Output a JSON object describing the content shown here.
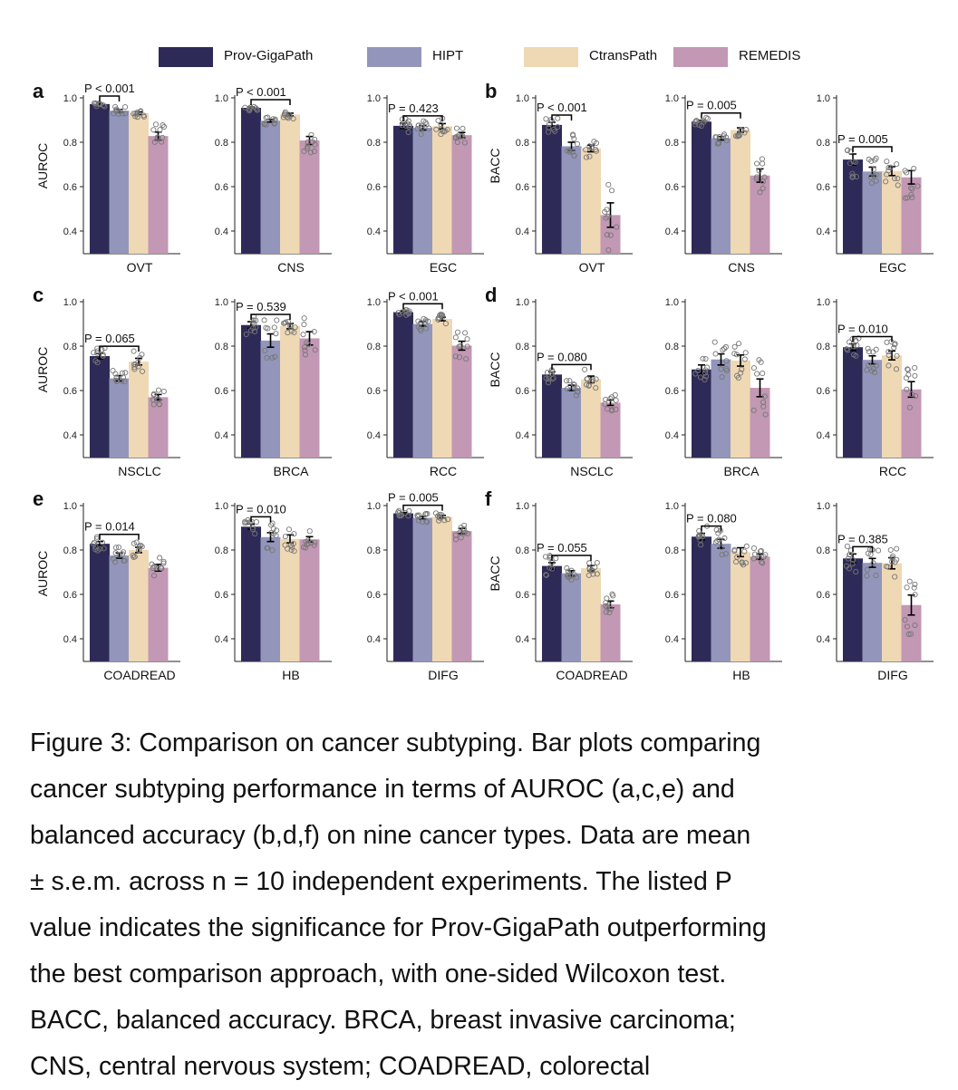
{
  "legend": [
    {
      "label": "Prov-GigaPath",
      "color": "#2e2a57"
    },
    {
      "label": "HIPT",
      "color": "#9396ba"
    },
    {
      "label": "CtransPath",
      "color": "#efd8b4"
    },
    {
      "label": "REMEDIS",
      "color": "#c298b4"
    }
  ],
  "chart_data": [
    {
      "panel_letter": "a",
      "type": "bar",
      "ylabel": "AUROC",
      "xlabel": "OVT",
      "p_text": "P < 0.001",
      "ylim": [
        0.3,
        1.0
      ],
      "yticks": [
        0.4,
        0.6,
        0.8,
        1.0
      ],
      "series": [
        {
          "name": "Prov-GigaPath",
          "value": 0.972,
          "sem": 0.004
        },
        {
          "name": "HIPT",
          "value": 0.942,
          "sem": 0.006
        },
        {
          "name": "CtransPath",
          "value": 0.931,
          "sem": 0.006
        },
        {
          "name": "REMEDIS",
          "value": 0.828,
          "sem": 0.018
        }
      ]
    },
    {
      "panel_letter": "",
      "type": "bar",
      "ylabel": "",
      "xlabel": "CNS",
      "p_text": "P < 0.001",
      "ylim": [
        0.3,
        1.0
      ],
      "yticks": [
        0.4,
        0.6,
        0.8,
        1.0
      ],
      "series": [
        {
          "name": "Prov-GigaPath",
          "value": 0.955,
          "sem": 0.004
        },
        {
          "name": "HIPT",
          "value": 0.897,
          "sem": 0.006
        },
        {
          "name": "CtransPath",
          "value": 0.925,
          "sem": 0.006
        },
        {
          "name": "REMEDIS",
          "value": 0.808,
          "sem": 0.018
        }
      ]
    },
    {
      "panel_letter": "",
      "type": "bar",
      "ylabel": "",
      "xlabel": "EGC",
      "p_text": "P = 0.423",
      "ylim": [
        0.3,
        1.0
      ],
      "yticks": [
        0.4,
        0.6,
        0.8,
        1.0
      ],
      "series": [
        {
          "name": "Prov-GigaPath",
          "value": 0.874,
          "sem": 0.012
        },
        {
          "name": "HIPT",
          "value": 0.865,
          "sem": 0.01
        },
        {
          "name": "CtransPath",
          "value": 0.872,
          "sem": 0.012
        },
        {
          "name": "REMEDIS",
          "value": 0.832,
          "sem": 0.012
        }
      ]
    },
    {
      "panel_letter": "b",
      "type": "bar",
      "ylabel": "BACC",
      "xlabel": "OVT",
      "p_text": "P < 0.001",
      "ylim": [
        0.3,
        1.0
      ],
      "yticks": [
        0.4,
        0.6,
        0.8,
        1.0
      ],
      "series": [
        {
          "name": "Prov-GigaPath",
          "value": 0.878,
          "sem": 0.012
        },
        {
          "name": "HIPT",
          "value": 0.782,
          "sem": 0.018
        },
        {
          "name": "CtransPath",
          "value": 0.772,
          "sem": 0.015
        },
        {
          "name": "REMEDIS",
          "value": 0.472,
          "sem": 0.055
        }
      ]
    },
    {
      "panel_letter": "",
      "type": "bar",
      "ylabel": "",
      "xlabel": "CNS",
      "p_text": "P = 0.005",
      "ylim": [
        0.3,
        1.0
      ],
      "yticks": [
        0.4,
        0.6,
        0.8,
        1.0
      ],
      "series": [
        {
          "name": "Prov-GigaPath",
          "value": 0.893,
          "sem": 0.006
        },
        {
          "name": "HIPT",
          "value": 0.818,
          "sem": 0.008
        },
        {
          "name": "CtransPath",
          "value": 0.855,
          "sem": 0.01
        },
        {
          "name": "REMEDIS",
          "value": 0.65,
          "sem": 0.03
        }
      ]
    },
    {
      "panel_letter": "",
      "type": "bar",
      "ylabel": "",
      "xlabel": "EGC",
      "p_text": "P = 0.005",
      "ylim": [
        0.3,
        1.0
      ],
      "yticks": [
        0.4,
        0.6,
        0.8,
        1.0
      ],
      "series": [
        {
          "name": "Prov-GigaPath",
          "value": 0.722,
          "sem": 0.025
        },
        {
          "name": "HIPT",
          "value": 0.668,
          "sem": 0.02
        },
        {
          "name": "CtransPath",
          "value": 0.67,
          "sem": 0.02
        },
        {
          "name": "REMEDIS",
          "value": 0.642,
          "sem": 0.03
        }
      ]
    },
    {
      "panel_letter": "c",
      "type": "bar",
      "ylabel": "AUROC",
      "xlabel": "NSCLC",
      "p_text": "P = 0.065",
      "ylim": [
        0.3,
        1.0
      ],
      "yticks": [
        0.4,
        0.6,
        0.8,
        1.0
      ],
      "series": [
        {
          "name": "Prov-GigaPath",
          "value": 0.755,
          "sem": 0.012
        },
        {
          "name": "HIPT",
          "value": 0.655,
          "sem": 0.012
        },
        {
          "name": "CtransPath",
          "value": 0.73,
          "sem": 0.015
        },
        {
          "name": "REMEDIS",
          "value": 0.57,
          "sem": 0.012
        }
      ]
    },
    {
      "panel_letter": "",
      "type": "bar",
      "ylabel": "",
      "xlabel": "BRCA",
      "p_text": "P = 0.539",
      "ylim": [
        0.3,
        1.0
      ],
      "yticks": [
        0.4,
        0.6,
        0.8,
        1.0
      ],
      "series": [
        {
          "name": "Prov-GigaPath",
          "value": 0.895,
          "sem": 0.015
        },
        {
          "name": "HIPT",
          "value": 0.825,
          "sem": 0.03
        },
        {
          "name": "CtransPath",
          "value": 0.89,
          "sem": 0.012
        },
        {
          "name": "REMEDIS",
          "value": 0.835,
          "sem": 0.03
        }
      ]
    },
    {
      "panel_letter": "",
      "type": "bar",
      "ylabel": "",
      "xlabel": "RCC",
      "p_text": "P < 0.001",
      "ylim": [
        0.3,
        1.0
      ],
      "yticks": [
        0.4,
        0.6,
        0.8,
        1.0
      ],
      "series": [
        {
          "name": "Prov-GigaPath",
          "value": 0.953,
          "sem": 0.005
        },
        {
          "name": "HIPT",
          "value": 0.9,
          "sem": 0.01
        },
        {
          "name": "CtransPath",
          "value": 0.922,
          "sem": 0.008
        },
        {
          "name": "REMEDIS",
          "value": 0.802,
          "sem": 0.02
        }
      ]
    },
    {
      "panel_letter": "d",
      "type": "bar",
      "ylabel": "BACC",
      "xlabel": "NSCLC",
      "p_text": "P = 0.080",
      "ylim": [
        0.3,
        1.0
      ],
      "yticks": [
        0.4,
        0.6,
        0.8,
        1.0
      ],
      "series": [
        {
          "name": "Prov-GigaPath",
          "value": 0.672,
          "sem": 0.012
        },
        {
          "name": "HIPT",
          "value": 0.612,
          "sem": 0.012
        },
        {
          "name": "CtransPath",
          "value": 0.65,
          "sem": 0.015
        },
        {
          "name": "REMEDIS",
          "value": 0.545,
          "sem": 0.012
        }
      ]
    },
    {
      "panel_letter": "",
      "type": "bar",
      "ylabel": "",
      "xlabel": "BRCA",
      "p_text": "",
      "ylim": [
        0.3,
        1.0
      ],
      "yticks": [
        0.4,
        0.6,
        0.8,
        1.0
      ],
      "series": [
        {
          "name": "Prov-GigaPath",
          "value": 0.695,
          "sem": 0.02
        },
        {
          "name": "HIPT",
          "value": 0.74,
          "sem": 0.025
        },
        {
          "name": "CtransPath",
          "value": 0.735,
          "sem": 0.025
        },
        {
          "name": "REMEDIS",
          "value": 0.612,
          "sem": 0.04
        }
      ]
    },
    {
      "panel_letter": "",
      "type": "bar",
      "ylabel": "",
      "xlabel": "RCC",
      "p_text": "P = 0.010",
      "ylim": [
        0.3,
        1.0
      ],
      "yticks": [
        0.4,
        0.6,
        0.8,
        1.0
      ],
      "series": [
        {
          "name": "Prov-GigaPath",
          "value": 0.795,
          "sem": 0.015
        },
        {
          "name": "HIPT",
          "value": 0.738,
          "sem": 0.018
        },
        {
          "name": "CtransPath",
          "value": 0.758,
          "sem": 0.02
        },
        {
          "name": "REMEDIS",
          "value": 0.605,
          "sem": 0.035
        }
      ]
    },
    {
      "panel_letter": "e",
      "type": "bar",
      "ylabel": "AUROC",
      "xlabel": "COADREAD",
      "p_text": "P = 0.014",
      "ylim": [
        0.3,
        1.0
      ],
      "yticks": [
        0.4,
        0.6,
        0.8,
        1.0
      ],
      "series": [
        {
          "name": "Prov-GigaPath",
          "value": 0.828,
          "sem": 0.01
        },
        {
          "name": "HIPT",
          "value": 0.775,
          "sem": 0.012
        },
        {
          "name": "CtransPath",
          "value": 0.8,
          "sem": 0.012
        },
        {
          "name": "REMEDIS",
          "value": 0.72,
          "sem": 0.015
        }
      ]
    },
    {
      "panel_letter": "",
      "type": "bar",
      "ylabel": "",
      "xlabel": "HB",
      "p_text": "P = 0.010",
      "ylim": [
        0.3,
        1.0
      ],
      "yticks": [
        0.4,
        0.6,
        0.8,
        1.0
      ],
      "series": [
        {
          "name": "Prov-GigaPath",
          "value": 0.905,
          "sem": 0.012
        },
        {
          "name": "HIPT",
          "value": 0.858,
          "sem": 0.02
        },
        {
          "name": "CtransPath",
          "value": 0.85,
          "sem": 0.018
        },
        {
          "name": "REMEDIS",
          "value": 0.848,
          "sem": 0.012
        }
      ]
    },
    {
      "panel_letter": "",
      "type": "bar",
      "ylabel": "",
      "xlabel": "DIFG",
      "p_text": "P = 0.005",
      "ylim": [
        0.3,
        1.0
      ],
      "yticks": [
        0.4,
        0.6,
        0.8,
        1.0
      ],
      "series": [
        {
          "name": "Prov-GigaPath",
          "value": 0.965,
          "sem": 0.004
        },
        {
          "name": "HIPT",
          "value": 0.945,
          "sem": 0.006
        },
        {
          "name": "CtransPath",
          "value": 0.95,
          "sem": 0.006
        },
        {
          "name": "REMEDIS",
          "value": 0.885,
          "sem": 0.012
        }
      ]
    },
    {
      "panel_letter": "f",
      "type": "bar",
      "ylabel": "BACC",
      "xlabel": "COADREAD",
      "p_text": "P = 0.055",
      "ylim": [
        0.3,
        1.0
      ],
      "yticks": [
        0.4,
        0.6,
        0.8,
        1.0
      ],
      "series": [
        {
          "name": "Prov-GigaPath",
          "value": 0.728,
          "sem": 0.015
        },
        {
          "name": "HIPT",
          "value": 0.695,
          "sem": 0.012
        },
        {
          "name": "CtransPath",
          "value": 0.718,
          "sem": 0.012
        },
        {
          "name": "REMEDIS",
          "value": 0.555,
          "sem": 0.015
        }
      ]
    },
    {
      "panel_letter": "",
      "type": "bar",
      "ylabel": "",
      "xlabel": "HB",
      "p_text": "P = 0.080",
      "ylim": [
        0.3,
        1.0
      ],
      "yticks": [
        0.4,
        0.6,
        0.8,
        1.0
      ],
      "series": [
        {
          "name": "Prov-GigaPath",
          "value": 0.86,
          "sem": 0.015
        },
        {
          "name": "HIPT",
          "value": 0.828,
          "sem": 0.02
        },
        {
          "name": "CtransPath",
          "value": 0.79,
          "sem": 0.02
        },
        {
          "name": "REMEDIS",
          "value": 0.77,
          "sem": 0.012
        }
      ]
    },
    {
      "panel_letter": "",
      "type": "bar",
      "ylabel": "",
      "xlabel": "DIFG",
      "p_text": "P = 0.385",
      "ylim": [
        0.3,
        1.0
      ],
      "yticks": [
        0.4,
        0.6,
        0.8,
        1.0
      ],
      "series": [
        {
          "name": "Prov-GigaPath",
          "value": 0.762,
          "sem": 0.02
        },
        {
          "name": "HIPT",
          "value": 0.742,
          "sem": 0.02
        },
        {
          "name": "CtransPath",
          "value": 0.74,
          "sem": 0.025
        },
        {
          "name": "REMEDIS",
          "value": 0.552,
          "sem": 0.045
        }
      ]
    }
  ],
  "caption": [
    "Figure 3: Comparison on cancer subtyping. Bar plots comparing",
    "cancer subtyping performance in terms of AUROC (a,c,e) and",
    "balanced accuracy (b,d,f) on nine cancer types. Data are mean",
    "± s.e.m. across n = 10 independent experiments. The listed P",
    "value indicates the significance for Prov-GigaPath outperforming",
    "the best comparison approach, with one-sided Wilcoxon test.",
    "BACC, balanced accuracy. BRCA, breast invasive carcinoma;",
    "CNS, central nervous system; COADREAD, colorectal"
  ]
}
